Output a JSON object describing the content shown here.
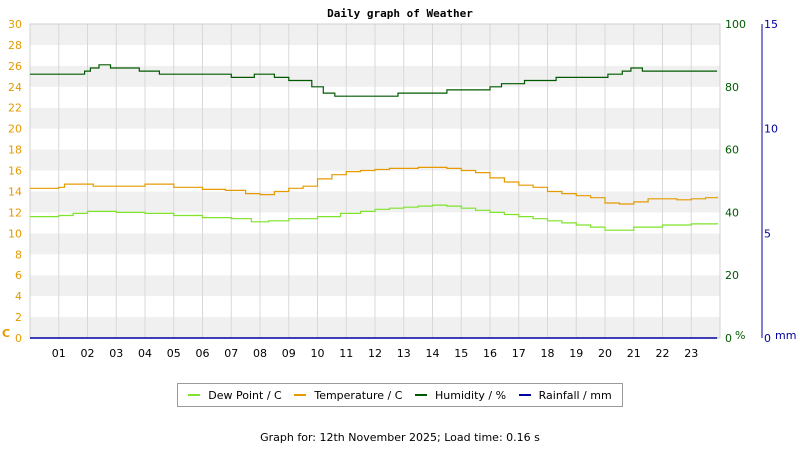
{
  "chart_data": {
    "type": "line",
    "title": "Daily graph of Weather",
    "colors": {
      "dew_point": "#7ee32a",
      "temperature": "#e59a00",
      "humidity": "#005900",
      "rainfall": "#0000a0",
      "left_axis": "#e59a00",
      "right_axis_1": "#005900",
      "right_axis_2": "#0000a0",
      "band": "#f0f0f0",
      "grid": "#d8d8d8"
    },
    "x_ticks": [
      "01",
      "02",
      "03",
      "04",
      "05",
      "06",
      "07",
      "08",
      "09",
      "10",
      "11",
      "12",
      "13",
      "14",
      "15",
      "16",
      "17",
      "18",
      "19",
      "20",
      "21",
      "22",
      "23"
    ],
    "x_range": [
      0,
      24
    ],
    "y_left": {
      "unit_label": "C",
      "min": 0,
      "max": 30,
      "ticks": [
        "0",
        "2",
        "4",
        "6",
        "8",
        "10",
        "12",
        "14",
        "16",
        "18",
        "20",
        "22",
        "24",
        "26",
        "28",
        "30"
      ]
    },
    "y_right_1": {
      "unit_label": "%",
      "min": 0,
      "max": 100,
      "ticks": [
        "0",
        "20",
        "40",
        "60",
        "80",
        "100"
      ]
    },
    "y_right_2": {
      "unit_label": "mm",
      "min": 0,
      "max": 15,
      "ticks": [
        "0",
        "5",
        "10",
        "15"
      ]
    },
    "grid": true,
    "legend_position": "bottom",
    "series": [
      {
        "name": "Dew Point / C",
        "axis": "left",
        "color": "#7ee32a",
        "x": [
          0.0,
          1.0,
          1.5,
          2.0,
          2.5,
          3.0,
          4.0,
          5.0,
          6.0,
          7.0,
          7.7,
          8.3,
          9.0,
          10.0,
          10.8,
          11.5,
          12.0,
          12.5,
          13.0,
          13.5,
          14.0,
          14.5,
          15.0,
          15.5,
          16.0,
          16.5,
          17.0,
          17.5,
          18.0,
          18.5,
          19.0,
          19.5,
          20.0,
          20.5,
          21.0,
          22.0,
          23.0,
          23.9
        ],
        "y": [
          11.6,
          11.7,
          11.9,
          12.1,
          12.1,
          12.0,
          11.9,
          11.7,
          11.5,
          11.4,
          11.1,
          11.2,
          11.4,
          11.6,
          11.9,
          12.1,
          12.3,
          12.4,
          12.5,
          12.6,
          12.7,
          12.6,
          12.4,
          12.2,
          12.0,
          11.8,
          11.6,
          11.4,
          11.2,
          11.0,
          10.8,
          10.6,
          10.3,
          10.3,
          10.6,
          10.8,
          10.9,
          11.0
        ]
      },
      {
        "name": "Temperature / C",
        "axis": "left",
        "color": "#e59a00",
        "x": [
          0.0,
          1.0,
          1.2,
          2.0,
          2.2,
          3.0,
          3.5,
          4.0,
          4.5,
          5.0,
          6.0,
          6.8,
          7.5,
          8.0,
          8.5,
          9.0,
          9.5,
          10.0,
          10.5,
          11.0,
          11.5,
          12.0,
          12.5,
          13.0,
          13.5,
          14.0,
          14.5,
          15.0,
          15.5,
          16.0,
          16.5,
          17.0,
          17.5,
          18.0,
          18.5,
          19.0,
          19.5,
          20.0,
          20.5,
          21.0,
          21.5,
          22.0,
          22.5,
          23.0,
          23.5,
          23.9
        ],
        "y": [
          14.3,
          14.4,
          14.7,
          14.7,
          14.5,
          14.5,
          14.5,
          14.7,
          14.7,
          14.4,
          14.2,
          14.1,
          13.8,
          13.7,
          14.0,
          14.3,
          14.5,
          15.2,
          15.6,
          15.9,
          16.0,
          16.1,
          16.2,
          16.2,
          16.3,
          16.3,
          16.2,
          16.0,
          15.8,
          15.3,
          14.9,
          14.6,
          14.4,
          14.0,
          13.8,
          13.6,
          13.4,
          12.9,
          12.8,
          13.0,
          13.3,
          13.3,
          13.2,
          13.3,
          13.4,
          13.5
        ]
      },
      {
        "name": "Humidity / %",
        "axis": "right_1",
        "color": "#005900",
        "x": [
          0.0,
          0.5,
          1.0,
          1.9,
          2.1,
          2.4,
          2.8,
          3.5,
          3.8,
          4.5,
          5.0,
          5.3,
          6.0,
          7.0,
          7.8,
          8.0,
          8.5,
          9.0,
          9.3,
          9.8,
          10.2,
          10.6,
          10.8,
          11.5,
          12.0,
          12.8,
          13.4,
          13.8,
          14.5,
          15.0,
          15.5,
          16.0,
          16.4,
          16.8,
          17.2,
          17.8,
          18.3,
          19.0,
          19.5,
          20.1,
          20.6,
          20.9,
          21.3,
          21.6,
          22.3,
          22.8,
          23.9
        ],
        "y": [
          84,
          84,
          84,
          85,
          86,
          87,
          86,
          86,
          85,
          84,
          84,
          84,
          84,
          83,
          84,
          84,
          83,
          82,
          82,
          80,
          78,
          77,
          77,
          77,
          77,
          78,
          78,
          78,
          79,
          79,
          79,
          80,
          81,
          81,
          82,
          82,
          83,
          83,
          83,
          84,
          85,
          86,
          85,
          85,
          85,
          85,
          85
        ]
      },
      {
        "name": "Rainfall / mm",
        "axis": "right_2",
        "color": "#0000a0",
        "x": [
          0.0,
          23.9
        ],
        "y": [
          0,
          0
        ]
      }
    ]
  },
  "footer": {
    "label": "Graph for:",
    "date": "12th November 2025",
    "load_label": "Load time:",
    "load_time": "0.16 s"
  }
}
